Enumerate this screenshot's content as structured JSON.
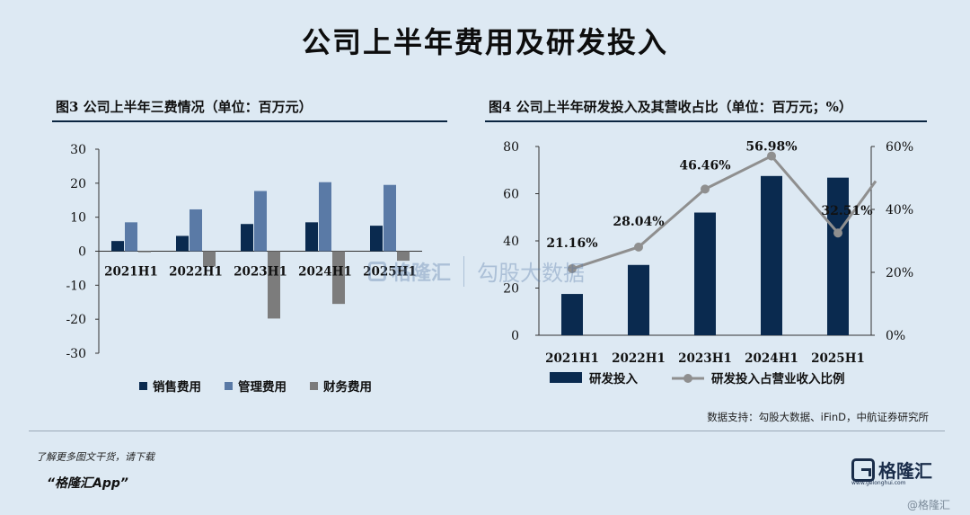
{
  "page": {
    "title": "公司上半年费用及研发投入",
    "source": "数据支持：勾股大数据、iFinD，中航证券研究所",
    "promo_line1": "了解更多图文干货，请下载",
    "promo_line2": "“格隆汇App”",
    "brand_name": "格隆汇",
    "brand_sub": "www.gelonghui.com",
    "watermark_brand": "格隆汇",
    "watermark_sub": "勾股大数据",
    "corner_mark": "@格隆汇"
  },
  "chart_data": [
    {
      "type": "bar",
      "title": "图3  公司上半年三费情况（单位：百万元）",
      "categories": [
        "2021H1",
        "2022H1",
        "2023H1",
        "2024H1",
        "2025H1"
      ],
      "series": [
        {
          "name": "销售费用",
          "color": "#0a2a4f",
          "values": [
            3,
            4.5,
            8,
            8.5,
            7.5
          ]
        },
        {
          "name": "管理费用",
          "color": "#5a7aa6",
          "values": [
            8.5,
            12.3,
            17.7,
            20.3,
            19.5
          ]
        },
        {
          "name": "财务费用",
          "color": "#7c7c7c",
          "values": [
            -0.3,
            -4.5,
            -19.8,
            -15.5,
            -2.8
          ]
        }
      ],
      "ylim": [
        -30,
        30
      ],
      "yticks": [
        30,
        20,
        10,
        0,
        -10,
        -20,
        -30
      ],
      "xlabel": "",
      "ylabel": "",
      "legend": "bottom",
      "grid": false
    },
    {
      "type": "bar+line",
      "title": "图4  公司上半年研发投入及其营收占比（单位：百万元；%）",
      "categories": [
        "2021H1",
        "2022H1",
        "2023H1",
        "2024H1",
        "2025H1"
      ],
      "series": [
        {
          "name": "研发投入",
          "type": "bar",
          "axis": "left",
          "color": "#0a2a4f",
          "values": [
            17.5,
            29.8,
            52,
            67.5,
            66.8
          ]
        },
        {
          "name": "研发投入占营业收入比例",
          "type": "line",
          "axis": "right",
          "color": "#8f8f8f",
          "values": [
            21.16,
            28.04,
            46.46,
            56.98,
            32.51
          ]
        }
      ],
      "data_labels": [
        "21.16%",
        "28.04%",
        "46.46%",
        "56.98%",
        "32.51%"
      ],
      "ylim_left": [
        0,
        80
      ],
      "yticks_left": [
        80,
        60,
        40,
        20,
        0
      ],
      "ylim_right": [
        0,
        60
      ],
      "yticks_right": [
        "60%",
        "40%",
        "20%",
        "0%"
      ],
      "xlabel": "",
      "ylabel": "",
      "legend": "bottom",
      "grid": false
    }
  ]
}
